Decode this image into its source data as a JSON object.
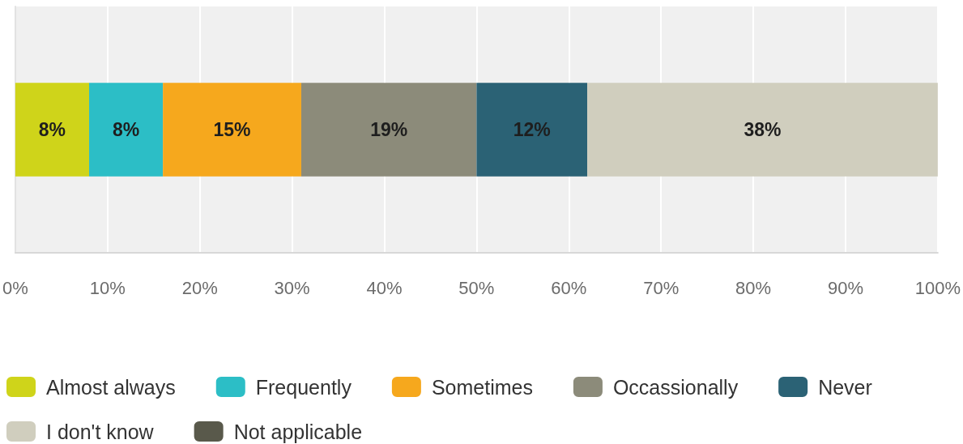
{
  "chart_data": {
    "type": "bar",
    "orientation": "horizontal",
    "stacked": true,
    "categories": [
      null
    ],
    "series": [
      {
        "name": "Almost always",
        "color": "#cfd41a",
        "values": [
          8
        ],
        "value_labels": [
          "8%"
        ]
      },
      {
        "name": "Frequently",
        "color": "#2cbec6",
        "values": [
          8
        ],
        "value_labels": [
          "8%"
        ]
      },
      {
        "name": "Sometimes",
        "color": "#f6a81d",
        "values": [
          15
        ],
        "value_labels": [
          "15%"
        ]
      },
      {
        "name": "Occassionally",
        "color": "#8c8b7a",
        "values": [
          19
        ],
        "value_labels": [
          "19%"
        ]
      },
      {
        "name": "Never",
        "color": "#2b6275",
        "values": [
          12
        ],
        "value_labels": [
          "12%"
        ]
      },
      {
        "name": "I don't know",
        "color": "#d0cebe",
        "values": [
          38
        ],
        "value_labels": [
          "38%"
        ]
      },
      {
        "name": "Not applicable",
        "color": "#59594b",
        "values": [
          null
        ]
      }
    ],
    "xlim": [
      0,
      100
    ],
    "xticks": [
      {
        "value": 0,
        "label": "0%"
      },
      {
        "value": 10,
        "label": "10%"
      },
      {
        "value": 20,
        "label": "20%"
      },
      {
        "value": 30,
        "label": "30%"
      },
      {
        "value": 40,
        "label": "40%"
      },
      {
        "value": 50,
        "label": "50%"
      },
      {
        "value": 60,
        "label": "60%"
      },
      {
        "value": 70,
        "label": "70%"
      },
      {
        "value": 80,
        "label": "80%"
      },
      {
        "value": 90,
        "label": "90%"
      },
      {
        "value": 100,
        "label": "100%"
      }
    ],
    "grid": "x",
    "legend": "bottom left"
  }
}
